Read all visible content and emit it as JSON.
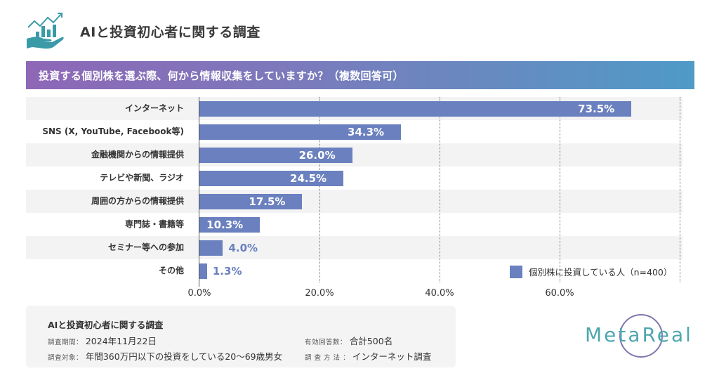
{
  "header": {
    "title": "AIと投資初心者に関する調査",
    "icon": "hand-chart-icon"
  },
  "question": "投資する個別株を選ぶ際、何から情報収集をしていますか？（複数回答可）",
  "chart_data": {
    "type": "bar",
    "orientation": "horizontal",
    "title": "投資する個別株を選ぶ際、何から情報収集をしていますか？（複数回答可）",
    "categories": [
      "インターネット",
      "SNS (X, YouTube, Facebook等)",
      "金融機関からの情報提供",
      "テレビや新聞、ラジオ",
      "周囲の方からの情報提供",
      "専門誌・書籍等",
      "セミナー等への参加",
      "その他"
    ],
    "series": [
      {
        "name": "個別株に投資している人（n=400）",
        "color": "#6a80bf",
        "values": [
          73.5,
          34.3,
          26.0,
          24.5,
          17.5,
          10.3,
          4.0,
          1.3
        ],
        "labels": [
          "73.5%",
          "34.3%",
          "26.0%",
          "24.5%",
          "17.5%",
          "10.3%",
          "4.0%",
          "1.3%"
        ]
      }
    ],
    "xlabel": "",
    "ylabel": "",
    "xlim": [
      0,
      80
    ],
    "xticks": [
      0,
      20,
      40,
      60,
      80
    ],
    "xtick_labels": [
      "0.0%",
      "20.0%",
      "40.0%",
      "60.0%",
      ""
    ],
    "grid": true,
    "legend": "bottom-right"
  },
  "info": {
    "title": "AIと投資初心者に関する調査",
    "period_key": "調査期間：",
    "period_val": "2024年11月22日",
    "target_key": "調査対象：",
    "target_val": "年間360万円以下の投資をしている20〜69歳男女",
    "responses_key": "有効回答数：",
    "responses_val": "合計500名",
    "method_key": "調 査 方 法 ：",
    "method_val": "インターネット調査"
  },
  "brand": {
    "name": "MetaReal",
    "color": "#4ea6ad"
  }
}
